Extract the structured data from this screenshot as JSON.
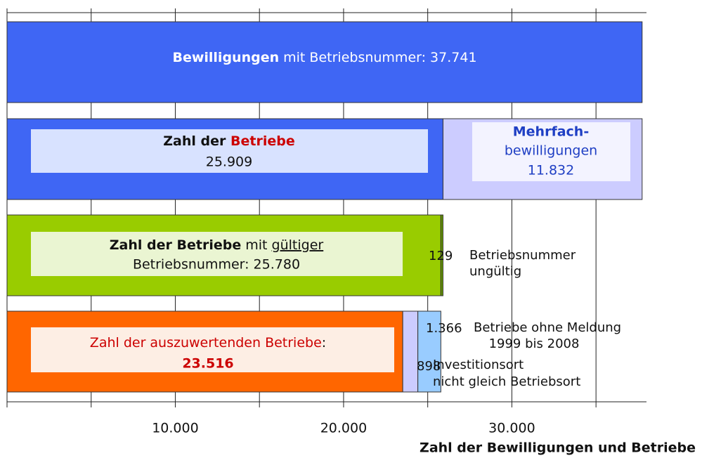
{
  "chart_data": {
    "type": "stacked_bar_horizontal",
    "xlabel": "Zahl der Bewilligungen und Betriebe",
    "xlim": [
      0,
      38000
    ],
    "xticks": [
      {
        "value": 10000,
        "label": "10.000"
      },
      {
        "value": 20000,
        "label": "20.000"
      },
      {
        "value": 30000,
        "label": "30.000"
      }
    ],
    "xgrid": [
      0,
      5000,
      10000,
      15000,
      20000,
      25000,
      30000,
      35000
    ],
    "bars": [
      {
        "segments": [
          {
            "value": 37741,
            "color": "#3f66f4",
            "lines": [
              [
                "Bewilligungen",
                " mit Betriebsnummer: 37.741"
              ]
            ]
          }
        ]
      },
      {
        "segments": [
          {
            "value": 25909,
            "color": "#3f66f4",
            "lines": [
              [
                "Zahl der ",
                "Betriebe"
              ],
              [
                "25.909"
              ]
            ]
          },
          {
            "value": 11832,
            "color": "#ccccff",
            "lines": [
              [
                "Mehrfach-"
              ],
              [
                "bewilligungen"
              ],
              [
                "11.832"
              ]
            ]
          }
        ]
      },
      {
        "segments": [
          {
            "value": 25780,
            "color": "#99cc00",
            "lines": [
              [
                "Zahl der Betriebe",
                " mit ",
                "gültiger"
              ],
              [
                "Betriebsnummer: 25.780"
              ]
            ]
          },
          {
            "value": 129,
            "color": "#669900",
            "value_label": "129",
            "note": [
              "Betriebsnummer",
              "ungültig"
            ]
          }
        ]
      },
      {
        "segments": [
          {
            "value": 23516,
            "color": "#ff6600",
            "lines": [
              [
                "Zahl der auszuwertenden Betriebe",
                ":"
              ],
              [
                "23.516"
              ]
            ]
          },
          {
            "value": 898,
            "color": "#ccccff",
            "value_label": "898",
            "note": [
              "Investitionsort",
              "nicht gleich Betriebsort"
            ]
          },
          {
            "value": 1366,
            "color": "#99ccff",
            "value_label": "1.366",
            "note": [
              "Betriebe ohne Meldung",
              "1999 bis 2008"
            ]
          }
        ]
      }
    ]
  }
}
